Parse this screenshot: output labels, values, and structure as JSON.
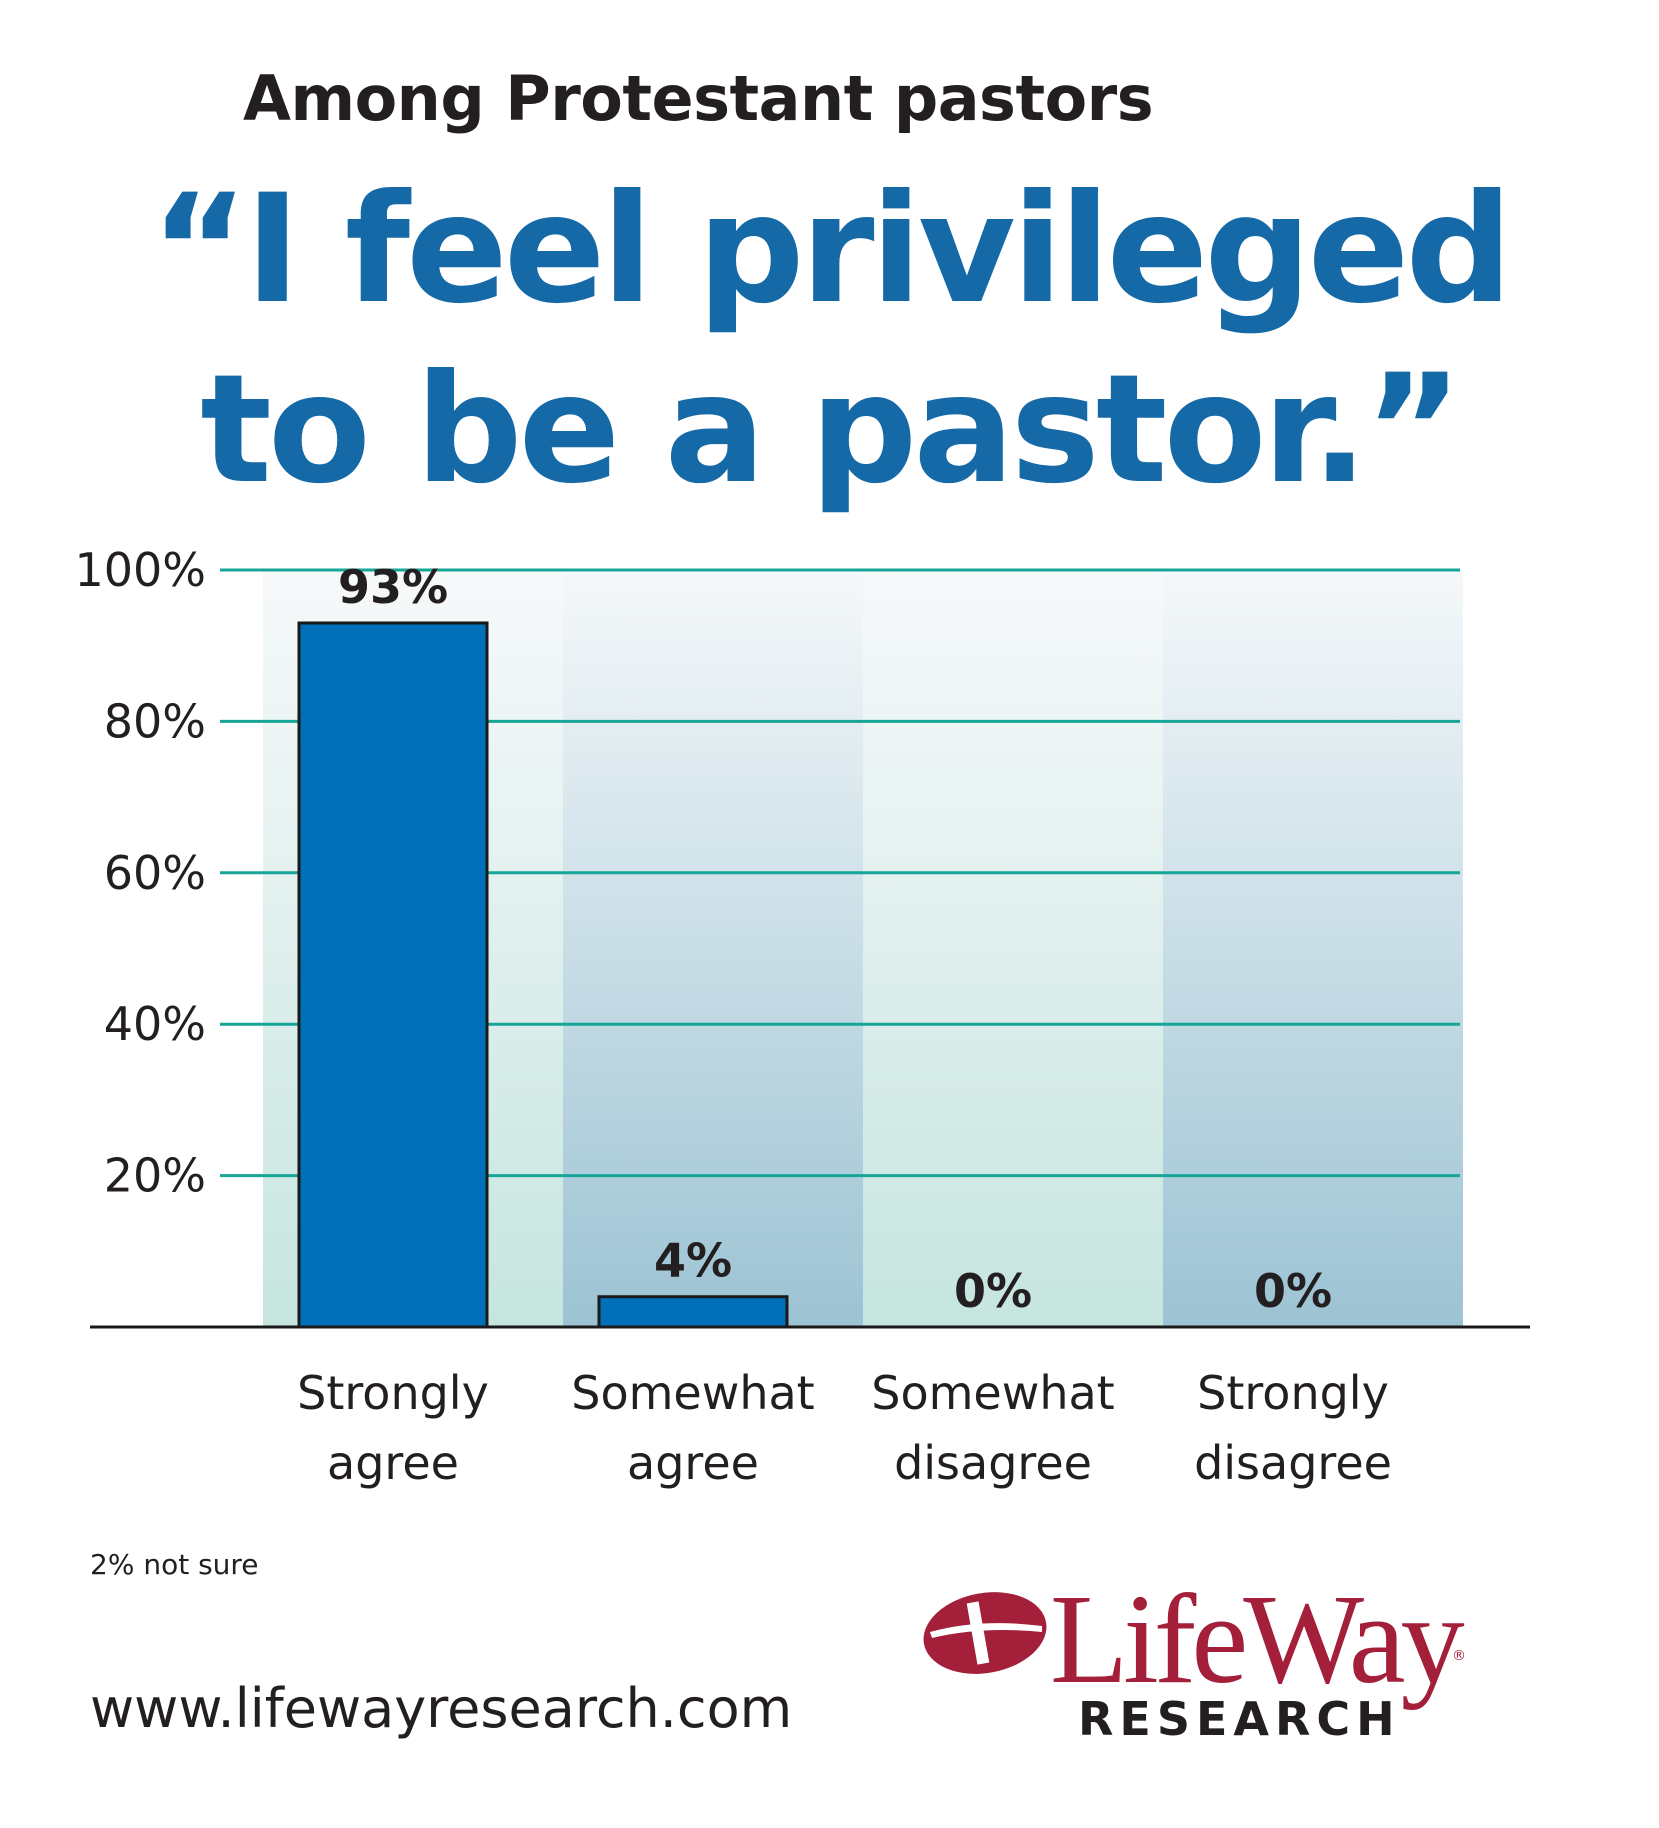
{
  "header": {
    "subtitle": "Among Protestant pastors",
    "quote_line1": "“I feel privileged",
    "quote_line2": "to be a pastor.”"
  },
  "chart_data": {
    "type": "bar",
    "categories": [
      [
        "Strongly",
        "agree"
      ],
      [
        "Somewhat",
        "agree"
      ],
      [
        "Somewhat",
        "disagree"
      ],
      [
        "Strongly",
        "disagree"
      ]
    ],
    "values": [
      93,
      4,
      0,
      0
    ],
    "value_labels": [
      "93%",
      "4%",
      "0%",
      "0%"
    ],
    "ylim": [
      0,
      100
    ],
    "yticks": [
      20,
      40,
      60,
      80,
      100
    ],
    "ytick_labels": [
      "20%",
      "40%",
      "60%",
      "80%",
      "100%"
    ],
    "grid": true,
    "legend": false,
    "bar_color": "#0070b8",
    "grid_color": "#16a596"
  },
  "footer": {
    "note": "2% not sure",
    "website": "www.lifewayresearch.com"
  },
  "logo": {
    "wordmark": "LifeWay",
    "registered": "®",
    "subtitle": "RESEARCH",
    "color": "#a31f3a"
  }
}
